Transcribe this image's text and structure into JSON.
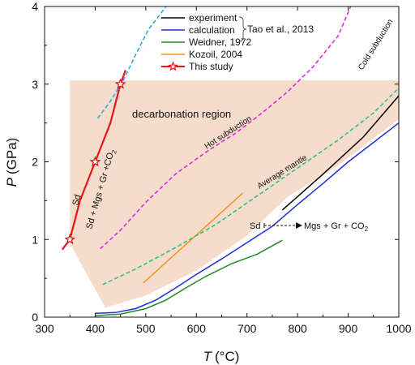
{
  "chart_data": {
    "type": "line",
    "xlabel_var": "T",
    "xlabel_unit": "(°C)",
    "ylabel_var": "P",
    "ylabel_unit": "(GPa)",
    "xlim": [
      300,
      1000
    ],
    "ylim": [
      0,
      4
    ],
    "x_ticks": [
      "300",
      "400",
      "500",
      "600",
      "700",
      "800",
      "900",
      "1000"
    ],
    "y_ticks": [
      "0",
      "1",
      "2",
      "3",
      "4"
    ],
    "legend_position": "top-right",
    "legend_group_label": "Tao et al., 2013",
    "region": {
      "name": "decarbonation region",
      "color": "#f6dccb",
      "points": [
        [
          350,
          3.05
        ],
        [
          1000,
          3.05
        ],
        [
          1000,
          2.55
        ],
        [
          880,
          1.95
        ],
        [
          780,
          1.55
        ],
        [
          700,
          1.05
        ],
        [
          600,
          0.6
        ],
        [
          500,
          0.28
        ],
        [
          420,
          0.12
        ],
        [
          350,
          0.95
        ]
      ]
    },
    "series": [
      {
        "name": "experiment",
        "color": "#000000",
        "dash": "solid",
        "legend": true,
        "points": [
          [
            770,
            1.38
          ],
          [
            850,
            1.84
          ],
          [
            930,
            2.32
          ],
          [
            1000,
            2.85
          ]
        ]
      },
      {
        "name": "calculation",
        "color": "#1f2fd6",
        "dash": "solid",
        "legend": true,
        "points": [
          [
            400,
            0.05
          ],
          [
            440,
            0.06
          ],
          [
            480,
            0.11
          ],
          [
            520,
            0.22
          ],
          [
            560,
            0.38
          ],
          [
            600,
            0.55
          ],
          [
            650,
            0.75
          ],
          [
            700,
            0.96
          ],
          [
            750,
            1.17
          ],
          [
            800,
            1.45
          ],
          [
            850,
            1.72
          ],
          [
            900,
            2.0
          ],
          [
            950,
            2.25
          ],
          [
            1000,
            2.5
          ]
        ]
      },
      {
        "name": "Weidner, 1972",
        "color": "#238a23",
        "dash": "solid",
        "legend": true,
        "points": [
          [
            400,
            0.02
          ],
          [
            450,
            0.04
          ],
          [
            500,
            0.11
          ],
          [
            540,
            0.22
          ],
          [
            580,
            0.38
          ],
          [
            620,
            0.53
          ],
          [
            670,
            0.69
          ],
          [
            720,
            0.81
          ],
          [
            770,
            0.99
          ]
        ]
      },
      {
        "name": "Kozoil, 2004",
        "color": "#f5901e",
        "dash": "solid",
        "legend": true,
        "points": [
          [
            495,
            0.44
          ],
          [
            692,
            1.6
          ]
        ]
      },
      {
        "name": "This study",
        "color": "#e8141a",
        "dash": "solid",
        "legend": true,
        "marker": "star",
        "points": [
          [
            335,
            0.87
          ],
          [
            350,
            1.0
          ],
          [
            370,
            1.5
          ],
          [
            400,
            2.0
          ],
          [
            430,
            2.5
          ],
          [
            450,
            3.0
          ],
          [
            460,
            3.18
          ]
        ],
        "marked_points": [
          [
            350,
            1.0
          ],
          [
            400,
            2.0
          ],
          [
            450,
            3.0
          ]
        ]
      },
      {
        "name": "Cold subduction",
        "color": "#27a3dc",
        "dash": "dashed",
        "legend": false,
        "points": [
          [
            405,
            2.56
          ],
          [
            430,
            2.78
          ],
          [
            455,
            3.04
          ],
          [
            480,
            3.38
          ],
          [
            505,
            3.7
          ],
          [
            540,
            4.0
          ]
        ]
      },
      {
        "name": "Hot subduction",
        "color": "#e11ee6",
        "dash": "dashed",
        "legend": false,
        "points": [
          [
            410,
            0.88
          ],
          [
            450,
            1.12
          ],
          [
            500,
            1.48
          ],
          [
            560,
            1.85
          ],
          [
            620,
            2.13
          ],
          [
            680,
            2.38
          ],
          [
            730,
            2.63
          ],
          [
            780,
            2.9
          ],
          [
            830,
            3.22
          ],
          [
            880,
            3.62
          ],
          [
            905,
            4.0
          ]
        ]
      },
      {
        "name": "Average mantle",
        "color": "#22c27a",
        "dash": "dashed",
        "legend": false,
        "points": [
          [
            415,
            0.42
          ],
          [
            480,
            0.62
          ],
          [
            560,
            0.9
          ],
          [
            640,
            1.2
          ],
          [
            720,
            1.56
          ],
          [
            800,
            1.92
          ],
          [
            880,
            2.28
          ],
          [
            950,
            2.63
          ],
          [
            1000,
            2.95
          ]
        ]
      }
    ],
    "annotations": {
      "region_label": "decarbonation region",
      "cold_label": "Cold subduction",
      "hot_label": "Hot subduction",
      "avg_label": "Average mantle",
      "sd_label": "Sd",
      "products_label": "Sd + Mgs + Gr +CO",
      "products_sub": "2",
      "reaction_lhs": "Sd",
      "reaction_rhs": "Mgs + Gr + CO",
      "reaction_sub": "2"
    }
  }
}
